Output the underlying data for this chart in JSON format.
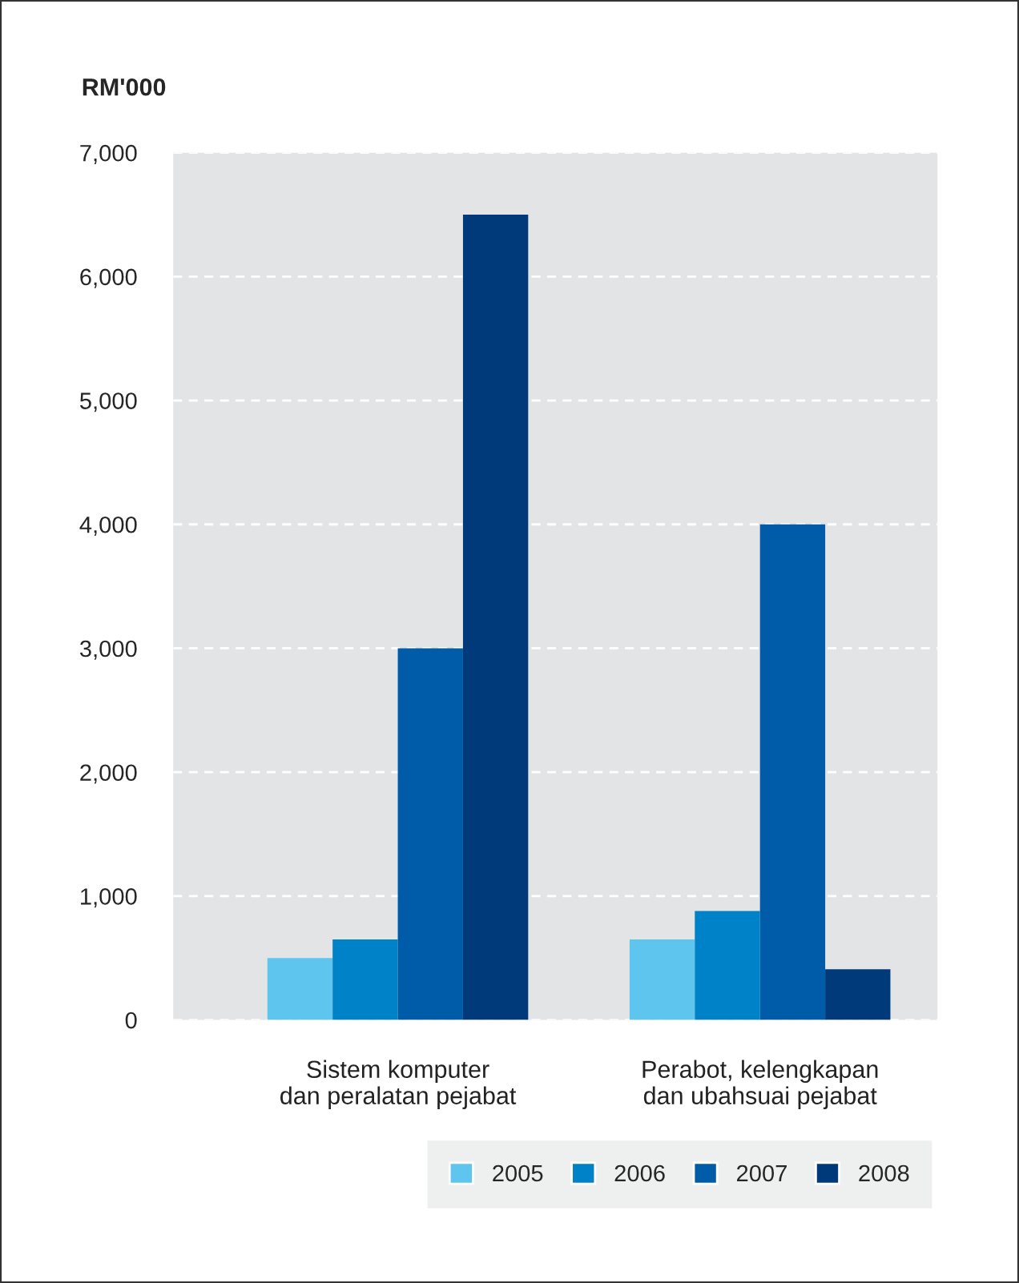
{
  "chart_data": {
    "type": "bar",
    "ylabel": "RM'000",
    "categories": [
      "Sistem komputer\ndan peralatan pejabat",
      "Perabot, kelengkapan\ndan ubahsuai pejabat"
    ],
    "series": [
      {
        "name": "2005",
        "color": "#5ec5ef",
        "values": [
          500,
          650
        ]
      },
      {
        "name": "2006",
        "color": "#0082c8",
        "values": [
          650,
          880
        ]
      },
      {
        "name": "2007",
        "color": "#005ca8",
        "values": [
          3000,
          4000
        ]
      },
      {
        "name": "2008",
        "color": "#003a7a",
        "values": [
          6500,
          410
        ]
      }
    ],
    "ylim": [
      0,
      7000
    ],
    "yticks": [
      0,
      {
        "value": 1000,
        "label": "1,000"
      },
      {
        "value": 2000,
        "label": "2,000"
      },
      {
        "value": 3000,
        "label": "3,000"
      },
      {
        "value": 4000,
        "label": "4,000"
      },
      {
        "value": 5000,
        "label": "5,000"
      },
      {
        "value": 6000,
        "label": "6,000"
      },
      {
        "value": 7000,
        "label": "7,000"
      }
    ],
    "grid": "y",
    "legend": "bottom right"
  }
}
